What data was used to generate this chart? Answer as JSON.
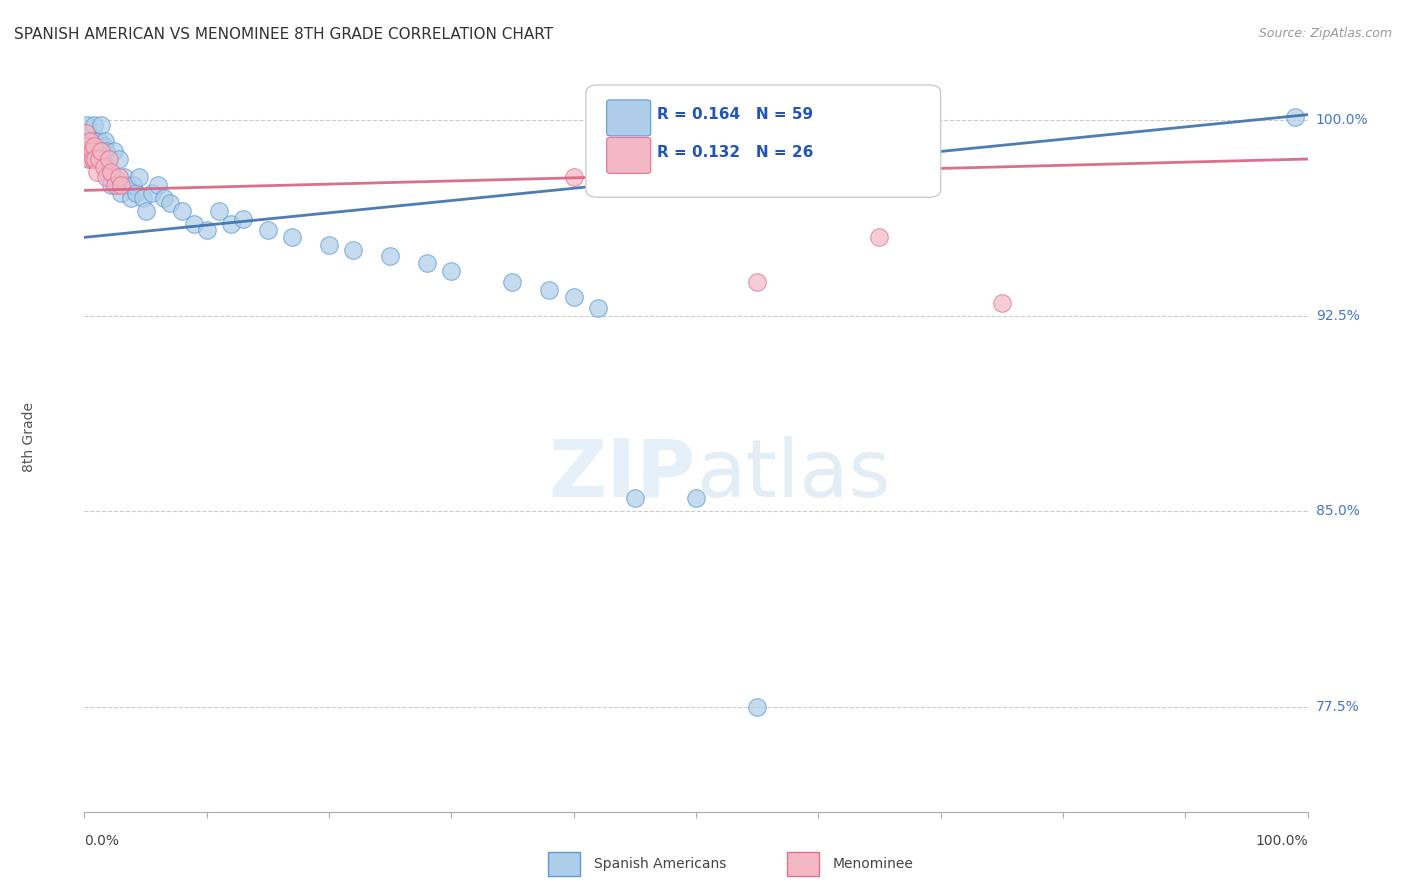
{
  "title": "SPANISH AMERICAN VS MENOMINEE 8TH GRADE CORRELATION CHART",
  "source": "Source: ZipAtlas.com",
  "ylabel": "8th Grade",
  "xlim": [
    0.0,
    1.0
  ],
  "ylim": [
    0.735,
    1.022
  ],
  "yticks": [
    0.775,
    0.85,
    0.925,
    1.0
  ],
  "ytick_labels": [
    "77.5%",
    "85.0%",
    "92.5%",
    "100.0%"
  ],
  "legend_line1": "R = 0.164   N = 59",
  "legend_line2": "R = 0.132   N = 26",
  "legend_labels": [
    "Spanish Americans",
    "Menominee"
  ],
  "blue_color": "#aecde8",
  "blue_edge_color": "#5b9bd5",
  "blue_line_color": "#3a6fad",
  "pink_color": "#f4b8c4",
  "pink_edge_color": "#e07090",
  "pink_line_color": "#d96080",
  "blue_trend": [
    0.955,
    1.002
  ],
  "pink_trend": [
    0.973,
    0.985
  ],
  "spanish_x": [
    0.001,
    0.002,
    0.003,
    0.004,
    0.005,
    0.006,
    0.007,
    0.008,
    0.009,
    0.01,
    0.011,
    0.012,
    0.013,
    0.014,
    0.015,
    0.016,
    0.017,
    0.018,
    0.019,
    0.02,
    0.022,
    0.024,
    0.025,
    0.027,
    0.028,
    0.03,
    0.032,
    0.035,
    0.038,
    0.04,
    0.042,
    0.045,
    0.048,
    0.05,
    0.055,
    0.06,
    0.065,
    0.07,
    0.08,
    0.09,
    0.1,
    0.11,
    0.12,
    0.13,
    0.15,
    0.17,
    0.2,
    0.22,
    0.25,
    0.28,
    0.3,
    0.35,
    0.38,
    0.4,
    0.42,
    0.45,
    0.5,
    0.55,
    0.99
  ],
  "spanish_y": [
    0.988,
    0.998,
    0.99,
    0.985,
    0.992,
    0.988,
    0.985,
    0.998,
    0.992,
    0.988,
    0.985,
    0.992,
    0.988,
    0.998,
    0.985,
    0.99,
    0.992,
    0.988,
    0.985,
    0.978,
    0.975,
    0.988,
    0.978,
    0.975,
    0.985,
    0.972,
    0.978,
    0.975,
    0.97,
    0.975,
    0.972,
    0.978,
    0.97,
    0.965,
    0.972,
    0.975,
    0.97,
    0.968,
    0.965,
    0.96,
    0.958,
    0.965,
    0.96,
    0.962,
    0.958,
    0.955,
    0.952,
    0.95,
    0.948,
    0.945,
    0.942,
    0.938,
    0.935,
    0.932,
    0.928,
    0.855,
    0.855,
    0.775,
    1.001
  ],
  "menominee_x": [
    0.001,
    0.002,
    0.003,
    0.004,
    0.005,
    0.006,
    0.007,
    0.008,
    0.009,
    0.01,
    0.012,
    0.014,
    0.016,
    0.018,
    0.02,
    0.022,
    0.025,
    0.028,
    0.03,
    0.4,
    0.45,
    0.5,
    0.52,
    0.55,
    0.65,
    0.75
  ],
  "menominee_y": [
    0.995,
    0.99,
    0.988,
    0.985,
    0.992,
    0.988,
    0.985,
    0.99,
    0.985,
    0.98,
    0.985,
    0.988,
    0.982,
    0.978,
    0.985,
    0.98,
    0.975,
    0.978,
    0.975,
    0.978,
    0.975,
    0.978,
    0.975,
    0.938,
    0.955,
    0.93
  ]
}
